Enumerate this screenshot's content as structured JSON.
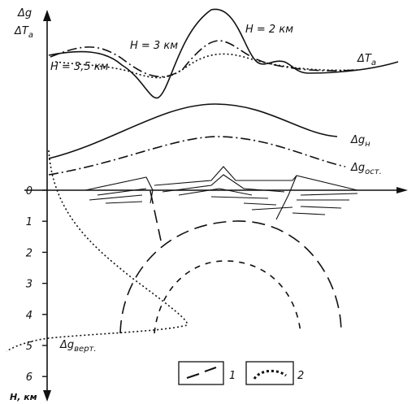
{
  "y_axis": {
    "label_lines": [
      {
        "text": "Δg"
      },
      {
        "text": "ΔT",
        "sub": "a"
      }
    ],
    "depth_label": "H, км",
    "ticks": [
      0,
      1,
      2,
      3,
      4,
      5,
      6
    ]
  },
  "curve_labels": [
    {
      "text": "H = 2 км"
    },
    {
      "text": "H = 3 км"
    },
    {
      "text": "H = 3,5 км"
    },
    {
      "text": "ΔT",
      "sub": "a"
    },
    {
      "text": "Δg",
      "sub": "н"
    },
    {
      "text": "Δg",
      "sub": "ост."
    },
    {
      "text": "Δg",
      "sub": "верт."
    }
  ],
  "legend": [
    {
      "label": "1"
    },
    {
      "label": "2"
    }
  ]
}
